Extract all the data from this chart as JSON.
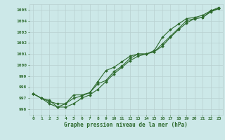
{
  "x": [
    0,
    1,
    2,
    3,
    4,
    5,
    6,
    7,
    8,
    9,
    10,
    11,
    12,
    13,
    14,
    15,
    16,
    17,
    18,
    19,
    20,
    21,
    22,
    23
  ],
  "line1": [
    997.4,
    997.0,
    996.8,
    996.2,
    996.5,
    997.3,
    997.3,
    997.5,
    998.3,
    998.6,
    999.4,
    999.9,
    1000.6,
    1001.0,
    1001.0,
    1001.3,
    1002.5,
    1003.2,
    1003.7,
    1004.2,
    1004.3,
    1004.5,
    1004.9,
    1005.1
  ],
  "line2": [
    997.4,
    997.0,
    996.5,
    996.2,
    996.2,
    996.5,
    997.0,
    997.3,
    997.8,
    998.5,
    999.2,
    999.8,
    1000.4,
    1000.8,
    1001.0,
    1001.2,
    1001.7,
    1002.5,
    1003.2,
    1003.8,
    1004.2,
    1004.3,
    1004.9,
    1005.2
  ],
  "line3": [
    997.4,
    997.0,
    996.7,
    996.5,
    996.5,
    997.0,
    997.2,
    997.5,
    998.5,
    999.5,
    999.8,
    1000.3,
    1000.8,
    1001.0,
    1001.0,
    1001.2,
    1001.9,
    1002.6,
    1003.3,
    1004.0,
    1004.2,
    1004.3,
    1004.8,
    1005.1
  ],
  "line_color": "#2d6a2d",
  "bg_color": "#cce8e8",
  "grid_major_color": "#b8d0d0",
  "grid_minor_color": "#d4e8e8",
  "xlabel": "Graphe pression niveau de la mer (hPa)",
  "ylim": [
    995.5,
    1005.5
  ],
  "yticks": [
    996,
    997,
    998,
    999,
    1000,
    1001,
    1002,
    1003,
    1004,
    1005
  ],
  "xlim": [
    -0.5,
    23.5
  ],
  "xticks": [
    0,
    1,
    2,
    3,
    4,
    5,
    6,
    7,
    8,
    9,
    10,
    11,
    12,
    13,
    14,
    15,
    16,
    17,
    18,
    19,
    20,
    21,
    22,
    23
  ],
  "marker": "D",
  "markersize": 1.8,
  "linewidth": 0.8
}
